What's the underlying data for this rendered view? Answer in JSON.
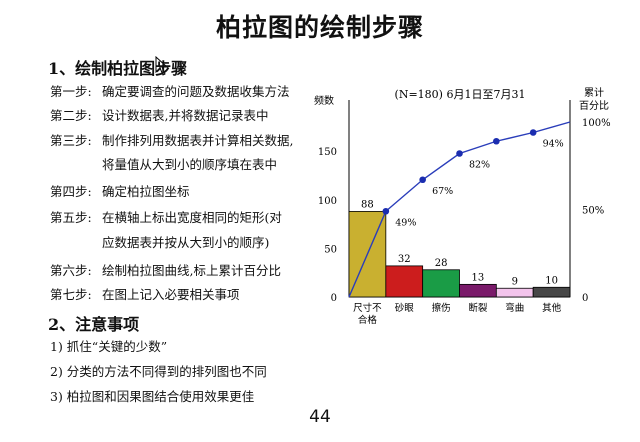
{
  "title": "柏拉图的绘制步骤",
  "section1": "1、绘制柏拉图步骤",
  "steps": [
    {
      "label": "第一步:",
      "text": "确定要调查的问题及数据收集方法"
    },
    {
      "label": "第二步:",
      "text": "设计数据表,并将数据记录表中"
    },
    {
      "label": "第三步:",
      "text": "制作排列用数据表并计算相关数据,"
    },
    {
      "label": "第四步:",
      "text": "确定柏拉图坐标"
    },
    {
      "label": "第五步:",
      "text": "在横轴上标出宽度相同的矩形(对"
    },
    {
      "label": "第六步:",
      "text": "绘制柏拉图曲线,标上累计百分比"
    },
    {
      "label": "第七步:",
      "text": "在图上记入必要相关事项"
    }
  ],
  "step3_cont": "将量值从大到小的顺序填在表中",
  "step5_cont": "应数据表并按从大到小的顺序)",
  "section2": "2、注意事项",
  "notes": [
    "1) 抓住“关键的少数”",
    "2) 分类的方法不同得到的排列图也不同",
    "3) 柏拉图和因果图结合使用效果更佳"
  ],
  "page_number": "44",
  "chart_data": {
    "type": "bar",
    "title": "(N=180)  6月1日至7月31",
    "ylabel": "频数",
    "y2label": [
      "累计",
      "百分比"
    ],
    "ylim": [
      0,
      180
    ],
    "y_ticks": [
      "0",
      "50",
      "100",
      "150"
    ],
    "y2lim": [
      0,
      100
    ],
    "y2_ticks": [
      "0",
      "50%",
      "100%"
    ],
    "categories": [
      [
        "尺寸不",
        "合格"
      ],
      [
        "砂眼"
      ],
      [
        "擦伤"
      ],
      [
        "断裂"
      ],
      [
        "弯曲"
      ],
      [
        "其他"
      ]
    ],
    "values": [
      88,
      32,
      28,
      13,
      9,
      10
    ],
    "value_labels": [
      "88",
      "32",
      "28",
      "13",
      "9",
      "10"
    ],
    "bar_colors": [
      "#c9b030",
      "#cc1d1d",
      "#1a9c46",
      "#7a1a6a",
      "#f3c4ec",
      "#474747"
    ],
    "cumulative_percent": [
      49,
      67,
      82,
      89,
      94,
      100
    ],
    "cumulative_labels": [
      "49%",
      "67%",
      "82%",
      "",
      "94%",
      ""
    ],
    "line_color": "#2a3dba",
    "marker_color": "#1b2db0"
  }
}
